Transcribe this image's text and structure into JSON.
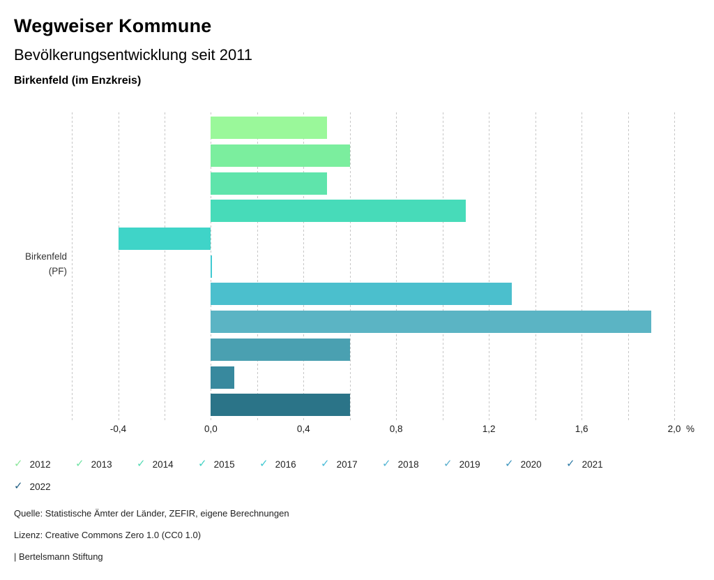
{
  "header": {
    "title": "Wegweiser Kommune",
    "subtitle": "Bevölkerungsentwicklung seit 2011",
    "region": "Birkenfeld (im Enzkreis)"
  },
  "chart_data": {
    "type": "bar",
    "orientation": "horizontal",
    "title": "Bevölkerungsentwicklung seit 2011",
    "group_label": "Birkenfeld (PF)",
    "group_label_lines": [
      "Birkenfeld",
      "(PF)"
    ],
    "categories": [
      "2012",
      "2013",
      "2014",
      "2015",
      "2016",
      "2017",
      "2018",
      "2019",
      "2020",
      "2021",
      "2022"
    ],
    "values": [
      0.5,
      0.6,
      0.5,
      1.1,
      -0.4,
      0.0,
      1.3,
      1.9,
      0.6,
      0.1,
      0.6
    ],
    "bar_colors": [
      "#9af89a",
      "#7bee9e",
      "#5fe4ab",
      "#47dbb9",
      "#3fd4c8",
      "#40c9d2",
      "#4bbfcd",
      "#5bb4c4",
      "#4aa0b1",
      "#38899e",
      "#2b7488"
    ],
    "unit": "%",
    "xlim": [
      -0.6,
      2.0
    ],
    "grid": true,
    "grid_step": 0.2,
    "gridline_color": "#c6c6c6",
    "x_tick_values": [
      -0.4,
      0.0,
      0.4,
      0.8,
      1.2,
      1.6,
      2.0
    ],
    "x_tick_labels": [
      "-0,4",
      "0,0",
      "0,4",
      "0,8",
      "1,2",
      "1,6",
      "2,0"
    ],
    "legend_position": "bottom"
  },
  "legend": {
    "items": [
      {
        "label": "2012",
        "check_color": "#8ce79b"
      },
      {
        "label": "2013",
        "check_color": "#6fe2a3"
      },
      {
        "label": "2014",
        "check_color": "#54dab3"
      },
      {
        "label": "2015",
        "check_color": "#42d2c3"
      },
      {
        "label": "2016",
        "check_color": "#3ec8d1"
      },
      {
        "label": "2017",
        "check_color": "#48bbd8"
      },
      {
        "label": "2018",
        "check_color": "#52b4d3"
      },
      {
        "label": "2019",
        "check_color": "#57adcc"
      },
      {
        "label": "2020",
        "check_color": "#3f96be"
      },
      {
        "label": "2021",
        "check_color": "#2e7aa5"
      },
      {
        "label": "2022",
        "check_color": "#1f5e83"
      }
    ],
    "check_glyph": "✓"
  },
  "footer": {
    "source": "Quelle: Statistische Ämter der Länder, ZEFIR, eigene Berechnungen",
    "license": "Lizenz: Creative Commons Zero 1.0 (CC0 1.0)",
    "branding": "| Bertelsmann Stiftung"
  }
}
